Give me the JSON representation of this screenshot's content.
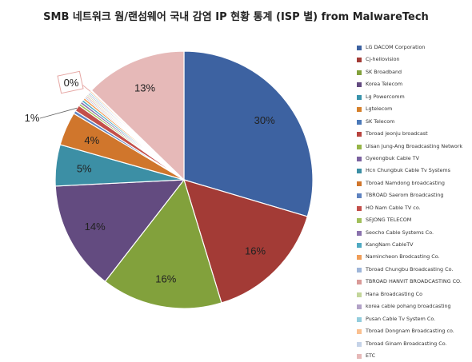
{
  "chart_data": {
    "type": "pie",
    "title": "SMB 네트워크 웜/랜섬웨어 국내 감염 IP 현황 통계 (ISP 별) from MalwareTech",
    "slices": [
      {
        "label": "LG DACOM Corporation",
        "value": 30.2,
        "display": "30%",
        "color": "#3d62a1"
      },
      {
        "label": "Cj-hellovision",
        "value": 16.0,
        "display": "16%",
        "color": "#a33b36"
      },
      {
        "label": "SK Broadband",
        "value": 15.5,
        "display": "16%",
        "color": "#82a13c"
      },
      {
        "label": "Korea Telecom",
        "value": 14.0,
        "display": "14%",
        "color": "#634b80"
      },
      {
        "label": "Lg Powercomm",
        "value": 0.0,
        "display": "",
        "color": "#3993ab"
      },
      {
        "label": "Lgtelecom",
        "value": 0.0,
        "display": "",
        "color": "#d5802b"
      },
      {
        "label": "SK Telecom",
        "value": 0.0,
        "display": "",
        "color": "#4b79b8"
      },
      {
        "label": "Tbroad jeonju broadcast",
        "value": 0.0,
        "display": "",
        "color": "#b8443f"
      },
      {
        "label": "Ulsan Jung-Ang Broadcasting Network",
        "value": 0.0,
        "display": "",
        "color": "#96b547"
      },
      {
        "label": "Gyeongbuk Cable TV",
        "value": 0.0,
        "display": "",
        "color": "#7b62a0"
      },
      {
        "label": "Hcn Chungbuk Cable Tv Systems",
        "value": 5.3,
        "display": "5%",
        "color": "#3c8fa5"
      },
      {
        "label": "Tbroad Namdong broadcasting",
        "value": 4.3,
        "display": "4%",
        "color": "#d0762c"
      },
      {
        "label": "TBROAD Saerom Broadcasting",
        "value": 0.4,
        "display": "",
        "color": "#5f83c0"
      },
      {
        "label": "HO Nam Cable TV co.",
        "value": 0.8,
        "display": "1%",
        "color": "#c34f4a"
      },
      {
        "label": "SEJONG TELECOM",
        "value": 0.3,
        "display": "",
        "color": "#a1bf5b"
      },
      {
        "label": "Seocho Cable Systems Co.",
        "value": 0.3,
        "display": "",
        "color": "#8a72ad"
      },
      {
        "label": "KangNam CableTV",
        "value": 0.3,
        "display": "",
        "color": "#4faac2"
      },
      {
        "label": "Namincheon Brodcasting Co.",
        "value": 0.3,
        "display": "",
        "color": "#f09e58"
      },
      {
        "label": "Tbroad Chungbu Broadcasting Co.",
        "value": 0.2,
        "display": "",
        "color": "#9fb6d9"
      },
      {
        "label": "TBROAD HANVIT BROADCASTING CO.",
        "value": 0.2,
        "display": "",
        "color": "#d99a98"
      },
      {
        "label": "Hana Broadcasting Co",
        "value": 0.2,
        "display": "",
        "color": "#c3d69b"
      },
      {
        "label": "korea cable pohang broadcasting",
        "value": 0.2,
        "display": "",
        "color": "#b2a2c7"
      },
      {
        "label": "Pusan Cable Tv System Co.",
        "value": 0.2,
        "display": "",
        "color": "#93cddd"
      },
      {
        "label": "Tbroad Dongnam Broadcasting co.",
        "value": 0.2,
        "display": "0%",
        "color": "#fac090"
      },
      {
        "label": "Tbroad Ginam Broadcasting Co.",
        "value": 0.1,
        "display": "",
        "color": "#c5d3e8"
      },
      {
        "label": "ETC",
        "value": 13.0,
        "display": "13%",
        "color": "#e6b9b8"
      }
    ]
  }
}
